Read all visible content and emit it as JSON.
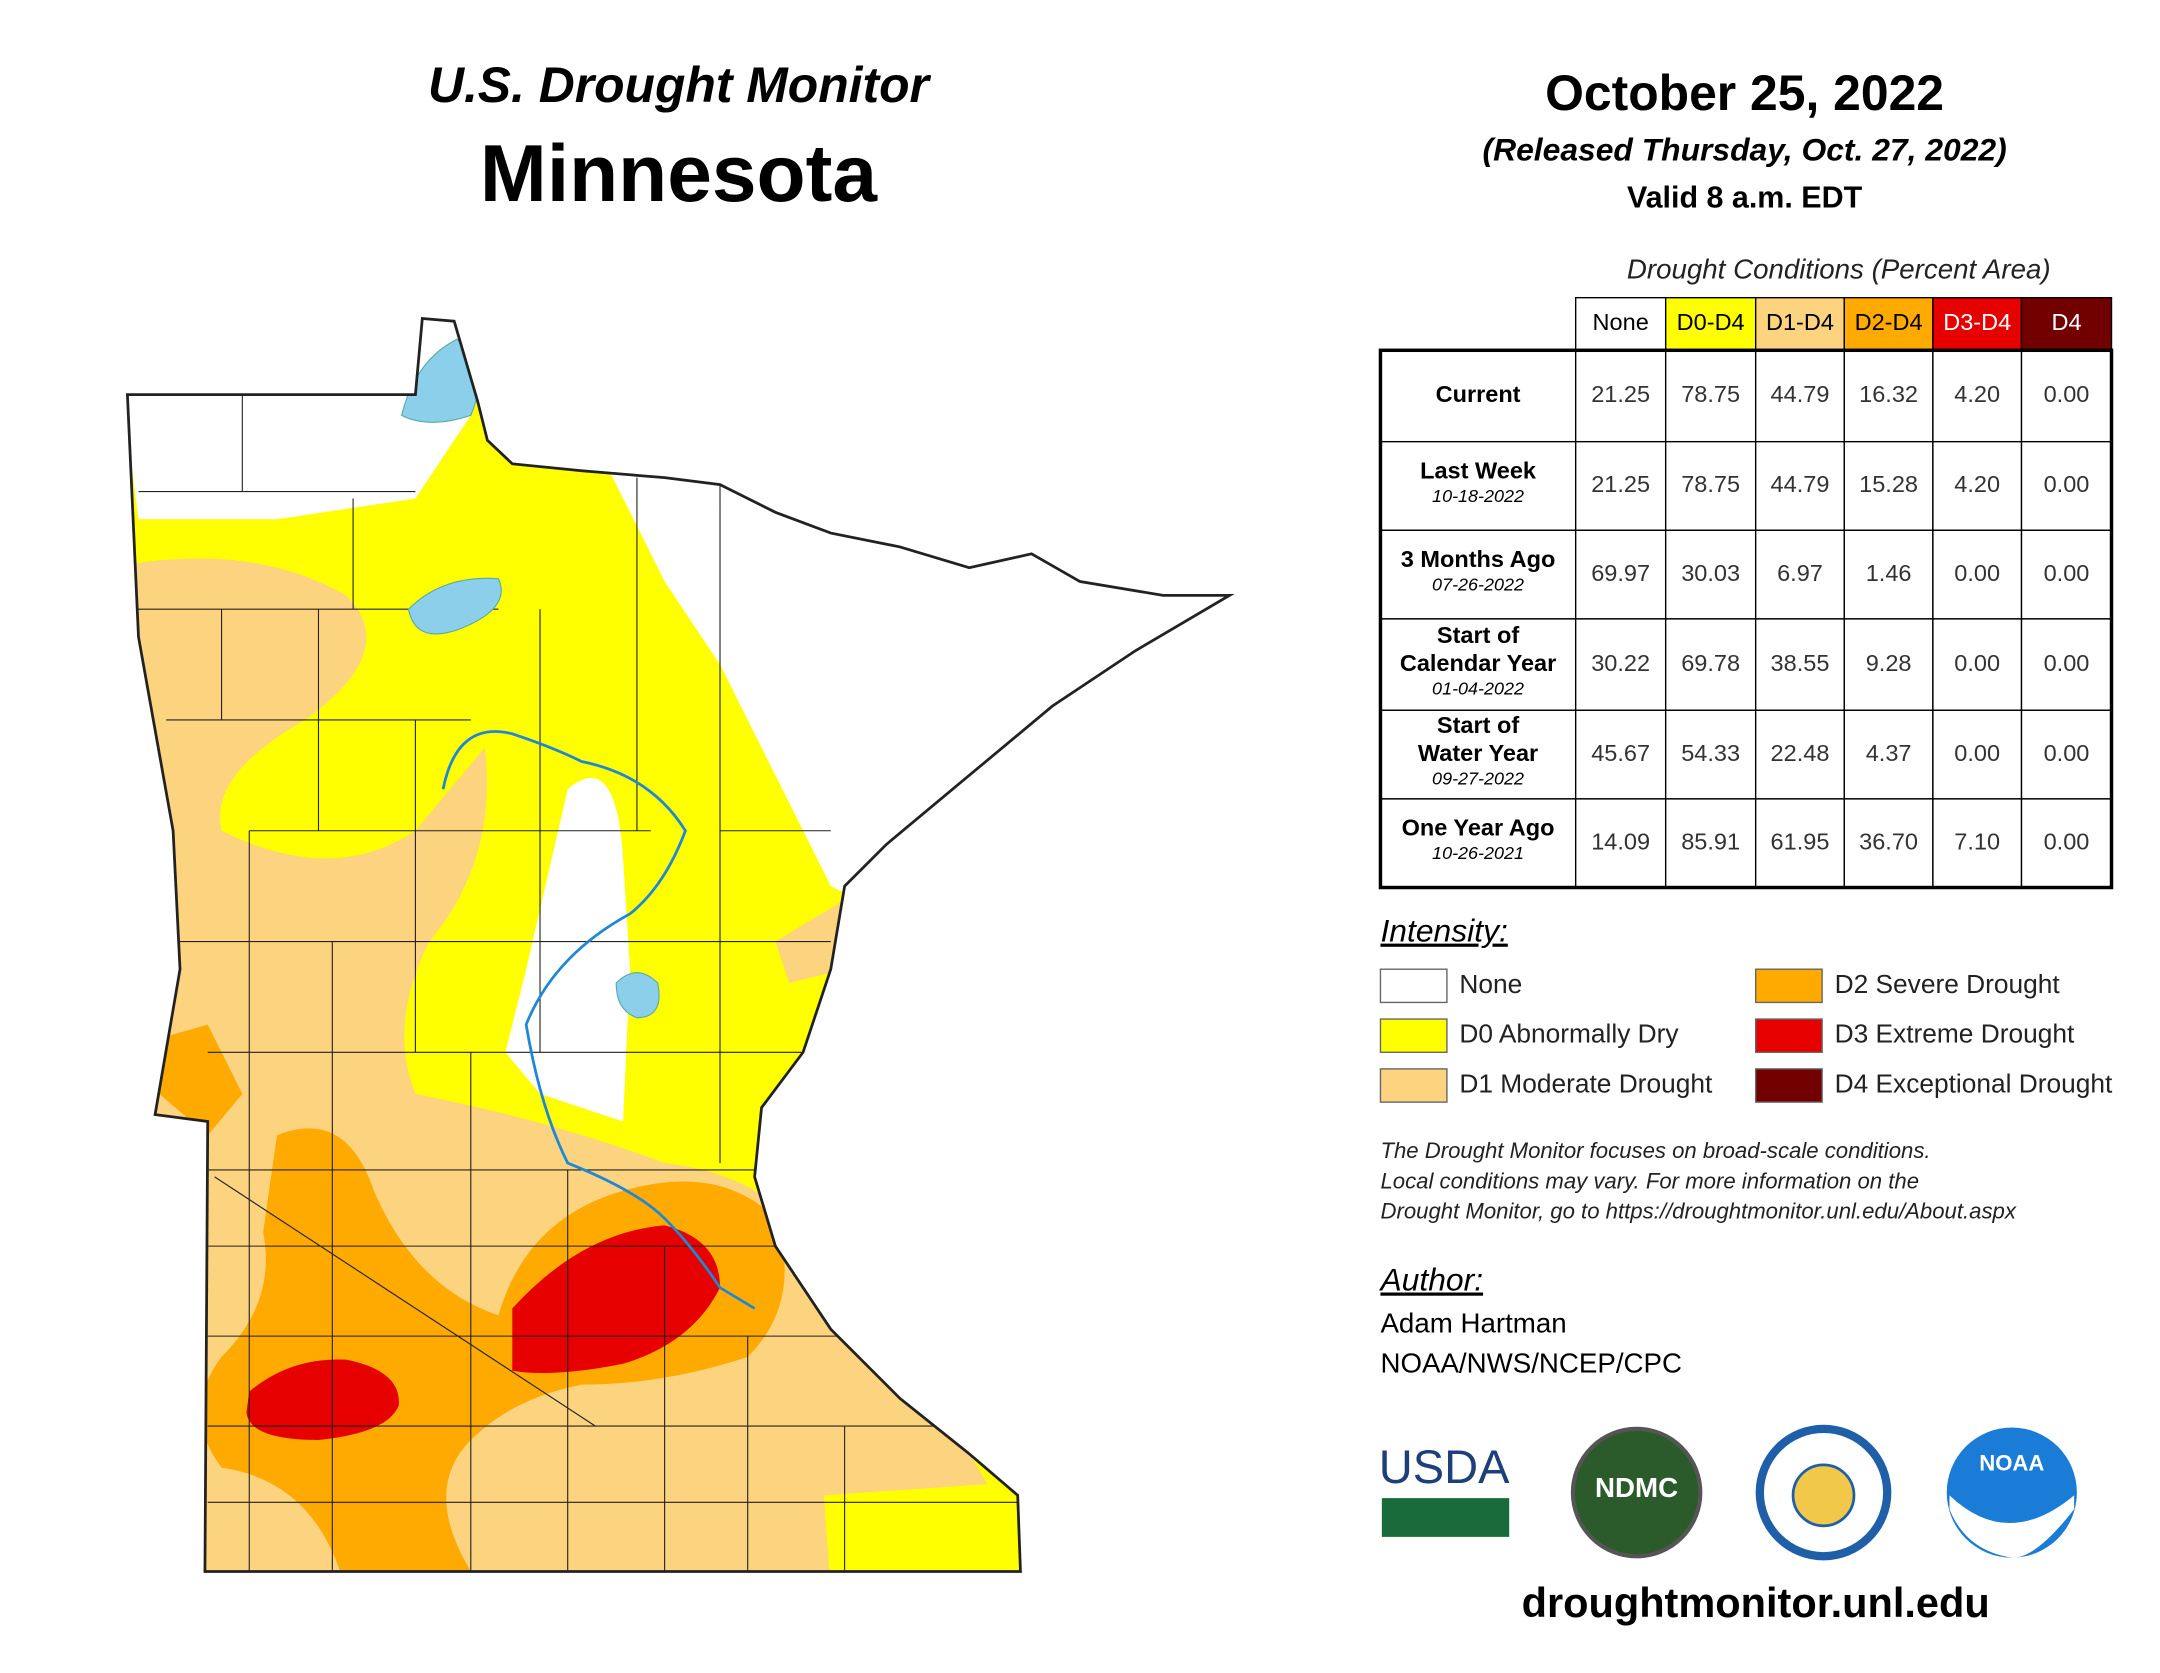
{
  "header": {
    "title": "U.S. Drought Monitor",
    "state": "Minnesota",
    "date": "October 25, 2022",
    "released": "(Released Thursday, Oct. 27, 2022)",
    "valid": "Valid 8 a.m. EDT"
  },
  "table": {
    "caption": "Drought Conditions (Percent Area)",
    "columns": [
      {
        "label": "None",
        "color": "#ffffff"
      },
      {
        "label": "D0-D4",
        "color": "#ffff00"
      },
      {
        "label": "D1-D4",
        "color": "#fcd37f"
      },
      {
        "label": "D2-D4",
        "color": "#ffaa00"
      },
      {
        "label": "D3-D4",
        "color": "#e60000"
      },
      {
        "label": "D4",
        "color": "#730000"
      }
    ],
    "rows": [
      {
        "label": [
          "Current"
        ],
        "values": [
          "21.25",
          "78.75",
          "44.79",
          "16.32",
          "4.20",
          "0.00"
        ]
      },
      {
        "label": [
          "Last Week"
        ],
        "date": "10-18-2022",
        "values": [
          "21.25",
          "78.75",
          "44.79",
          "15.28",
          "4.20",
          "0.00"
        ]
      },
      {
        "label": [
          "3 Months Ago"
        ],
        "date": "07-26-2022",
        "values": [
          "69.97",
          "30.03",
          "6.97",
          "1.46",
          "0.00",
          "0.00"
        ]
      },
      {
        "label": [
          "Start of",
          "Calendar Year"
        ],
        "date": "01-04-2022",
        "values": [
          "30.22",
          "69.78",
          "38.55",
          "9.28",
          "0.00",
          "0.00"
        ]
      },
      {
        "label": [
          "Start of",
          "Water Year"
        ],
        "date": "09-27-2022",
        "values": [
          "45.67",
          "54.33",
          "22.48",
          "4.37",
          "0.00",
          "0.00"
        ]
      },
      {
        "label": [
          "One Year Ago"
        ],
        "date": "10-26-2021",
        "values": [
          "14.09",
          "85.91",
          "61.95",
          "36.70",
          "7.10",
          "0.00"
        ]
      }
    ]
  },
  "legend": {
    "title": "Intensity:",
    "items": [
      {
        "label": "None",
        "color": "#ffffff"
      },
      {
        "label": "D0 Abnormally Dry",
        "color": "#ffff00"
      },
      {
        "label": "D1 Moderate Drought",
        "color": "#fcd37f"
      },
      {
        "label": "D2 Severe Drought",
        "color": "#ffaa00"
      },
      {
        "label": "D3 Extreme Drought",
        "color": "#e60000"
      },
      {
        "label": "D4 Exceptional Drought",
        "color": "#730000"
      }
    ]
  },
  "note": [
    "The Drought Monitor focuses on broad-scale conditions.",
    "Local conditions may vary. For more information on the",
    "Drought Monitor, go to https://droughtmonitor.unl.edu/About.aspx"
  ],
  "author": {
    "title": "Author:",
    "name": "Adam Hartman",
    "org": "NOAA/NWS/NCEP/CPC"
  },
  "logos": [
    "USDA",
    "NDMC",
    "NOAA"
  ],
  "url": "droughtmonitor.unl.edu"
}
